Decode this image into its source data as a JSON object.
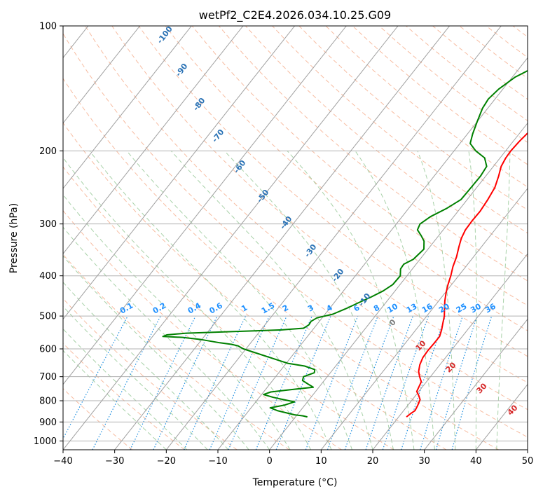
{
  "chart_data": {
    "type": "line",
    "title": "wetPf2_C2E4.2026.034.10.25.G09",
    "xlabel": "Temperature (°C)",
    "ylabel": "Pressure (hPa)",
    "xlim": [
      -40,
      50
    ],
    "ylim": [
      1050,
      100
    ],
    "y_scale": "log",
    "x_ticks": [
      -40,
      -30,
      -20,
      -10,
      0,
      10,
      20,
      30,
      40,
      50
    ],
    "y_ticks": [
      100,
      200,
      300,
      400,
      500,
      600,
      700,
      800,
      900,
      1000
    ],
    "grid": true,
    "series": [
      {
        "color": "#ff0000",
        "points": [
          [
            21.5,
            875
          ],
          [
            21.8,
            860
          ],
          [
            22.2,
            845
          ],
          [
            21.9,
            820
          ],
          [
            21.5,
            795
          ],
          [
            20.5,
            775
          ],
          [
            19.6,
            760
          ],
          [
            19.3,
            740
          ],
          [
            19.0,
            720
          ],
          [
            17.9,
            700
          ],
          [
            16.9,
            680
          ],
          [
            16.1,
            655
          ],
          [
            15.6,
            630
          ],
          [
            15.5,
            605
          ],
          [
            15.6,
            580
          ],
          [
            15.6,
            560
          ],
          [
            15.0,
            540
          ],
          [
            14.2,
            520
          ],
          [
            13.4,
            500
          ],
          [
            12.3,
            480
          ],
          [
            11.2,
            460
          ],
          [
            10.2,
            440
          ],
          [
            9.3,
            420
          ],
          [
            8.5,
            400
          ],
          [
            7.5,
            380
          ],
          [
            6.7,
            360
          ],
          [
            5.6,
            340
          ],
          [
            4.8,
            325
          ],
          [
            4.3,
            310
          ],
          [
            4.2,
            295
          ],
          [
            4.3,
            280
          ],
          [
            4.0,
            262
          ],
          [
            3.5,
            245
          ],
          [
            2.5,
            230
          ],
          [
            1.5,
            218
          ],
          [
            1.1,
            208
          ],
          [
            1.0,
            200
          ],
          [
            1.2,
            190
          ],
          [
            1.6,
            180
          ],
          [
            2.5,
            172
          ],
          [
            4.0,
            165
          ],
          [
            5.8,
            158
          ],
          [
            6.3,
            150
          ],
          [
            6.5,
            142
          ],
          [
            6.9,
            135
          ],
          [
            7.4,
            125
          ],
          [
            8.2,
            115
          ],
          [
            8.9,
            107
          ],
          [
            9.5,
            100
          ]
        ]
      },
      {
        "color": "#008000",
        "points": [
          [
            2.3,
            875
          ],
          [
            1.3,
            870
          ],
          [
            -0.5,
            865
          ],
          [
            -2.5,
            855
          ],
          [
            -4.5,
            845
          ],
          [
            -6.3,
            832
          ],
          [
            -4.0,
            820
          ],
          [
            -2.5,
            805
          ],
          [
            -5.0,
            795
          ],
          [
            -7.3,
            785
          ],
          [
            -9.6,
            773
          ],
          [
            -8.6,
            762
          ],
          [
            -5.0,
            752
          ],
          [
            -1.1,
            742
          ],
          [
            -2.5,
            730
          ],
          [
            -4.2,
            715
          ],
          [
            -4.6,
            700
          ],
          [
            -3.1,
            685
          ],
          [
            -3.5,
            673
          ],
          [
            -6.0,
            660
          ],
          [
            -9.7,
            650
          ],
          [
            -15.0,
            625
          ],
          [
            -20.5,
            600
          ],
          [
            -22.0,
            590
          ],
          [
            -23.5,
            585
          ],
          [
            -26.0,
            580
          ],
          [
            -30.0,
            570
          ],
          [
            -34.0,
            563
          ],
          [
            -38.0,
            560
          ],
          [
            -37.5,
            555
          ],
          [
            -34.0,
            550
          ],
          [
            -25.0,
            545
          ],
          [
            -16.0,
            540
          ],
          [
            -12.0,
            535
          ],
          [
            -11.5,
            525
          ],
          [
            -11.6,
            515
          ],
          [
            -11.0,
            505
          ],
          [
            -8.5,
            495
          ],
          [
            -6.8,
            480
          ],
          [
            -5.3,
            465
          ],
          [
            -3.7,
            450
          ],
          [
            -2.3,
            435
          ],
          [
            -1.4,
            420
          ],
          [
            -1.3,
            400
          ],
          [
            -2.3,
            385
          ],
          [
            -2.4,
            375
          ],
          [
            -1.3,
            365
          ],
          [
            -0.8,
            345
          ],
          [
            -2.0,
            330
          ],
          [
            -3.4,
            320
          ],
          [
            -5.0,
            310
          ],
          [
            -5.4,
            300
          ],
          [
            -4.5,
            288
          ],
          [
            -2.6,
            275
          ],
          [
            -1.2,
            262
          ],
          [
            -1.1,
            245
          ],
          [
            -1.0,
            230
          ],
          [
            -1.3,
            218
          ],
          [
            -3.0,
            208
          ],
          [
            -5.8,
            200
          ],
          [
            -8.0,
            192
          ],
          [
            -9.0,
            182
          ],
          [
            -10.0,
            170
          ],
          [
            -11.0,
            158
          ],
          [
            -11.3,
            150
          ],
          [
            -10.8,
            142
          ],
          [
            -9.5,
            133
          ],
          [
            -7.0,
            125
          ],
          [
            -4.6,
            118
          ],
          [
            -2.0,
            112
          ],
          [
            -0.6,
            105
          ],
          [
            0.3,
            100
          ]
        ]
      }
    ],
    "mixing_ratio_labels": [
      "0.1",
      "0.2",
      "0.4",
      "0.6",
      "1",
      "1.5",
      "2",
      "3",
      "4",
      "6",
      "8",
      "10",
      "13",
      "16",
      "20",
      "25",
      "30",
      "36"
    ],
    "dry_adiabat_labels": [
      "-100",
      "-90",
      "-80",
      "-70",
      "-60",
      "-50",
      "-40",
      "-30",
      "-20",
      "-10"
    ],
    "moist_adiabat_labels": [
      "0",
      "10",
      "20",
      "30",
      "40"
    ],
    "colors": {
      "temperature": "#ff0000",
      "dewpoint": "#008000",
      "dry_adiabat": "#f4a582",
      "moist_adiabat": "#92c592",
      "mixing_ratio": "#1f8fe0",
      "isotherm": "#7f7f7f",
      "dry_label": "#2a72b5",
      "moist_label": "#d62728",
      "mixing_label": "#1e90ff"
    }
  }
}
